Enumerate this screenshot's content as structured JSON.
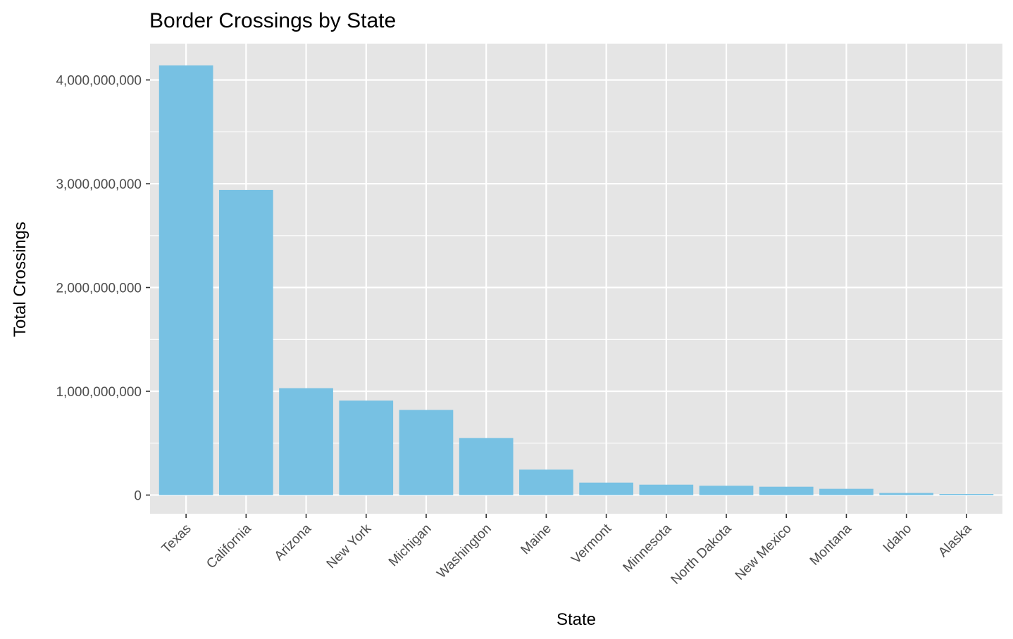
{
  "chart_data": {
    "type": "bar",
    "title": "Border Crossings by State",
    "xlabel": "State",
    "ylabel": "Total Crossings",
    "categories": [
      "Texas",
      "California",
      "Arizona",
      "New York",
      "Michigan",
      "Washington",
      "Maine",
      "Vermont",
      "Minnesota",
      "North Dakota",
      "New Mexico",
      "Montana",
      "Idaho",
      "Alaska"
    ],
    "values": [
      4140000000,
      2940000000,
      1030000000,
      910000000,
      820000000,
      550000000,
      245000000,
      120000000,
      100000000,
      90000000,
      80000000,
      60000000,
      20000000,
      10000000
    ],
    "yticks": [
      0,
      1000000000,
      2000000000,
      3000000000,
      4000000000
    ],
    "ytick_labels": [
      "0",
      "1,000,000,000",
      "2,000,000,000",
      "3,000,000,000",
      "4,000,000,000"
    ],
    "ylim": [
      -180000000,
      4350000000
    ],
    "grid": true,
    "legend": "none",
    "colors": {
      "bar": "#77c1e3",
      "panel": "#e5e5e5",
      "grid": "#ffffff"
    }
  }
}
